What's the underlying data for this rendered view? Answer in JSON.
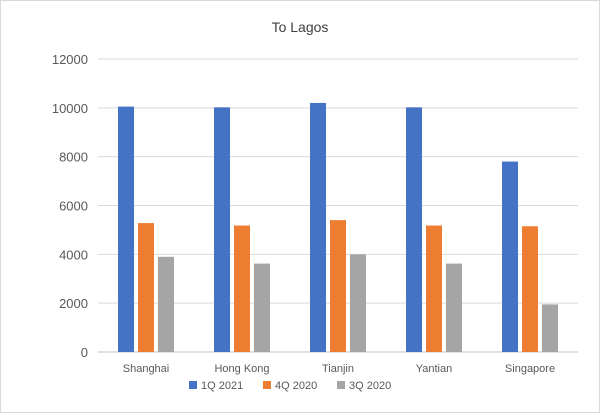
{
  "chart_data": {
    "type": "bar",
    "title": "To Lagos",
    "xlabel": "",
    "ylabel": "",
    "categories": [
      "Shanghai",
      "Hong Kong",
      "Tianjin",
      "Yantian",
      "Singapore"
    ],
    "series": [
      {
        "name": "1Q 2021",
        "color": "#4472c4",
        "values": [
          10050,
          10020,
          10200,
          10020,
          7800
        ]
      },
      {
        "name": "4Q 2020",
        "color": "#ed7d31",
        "values": [
          5280,
          5180,
          5400,
          5180,
          5150
        ]
      },
      {
        "name": "3Q 2020",
        "color": "#a5a5a5",
        "values": [
          3900,
          3620,
          4000,
          3620,
          1950
        ]
      }
    ],
    "ylim": [
      0,
      12000
    ],
    "yticks": [
      "0",
      "2000",
      "4000",
      "6000",
      "8000",
      "10000",
      "12000"
    ],
    "grid": true,
    "legend_position": "bottom"
  }
}
